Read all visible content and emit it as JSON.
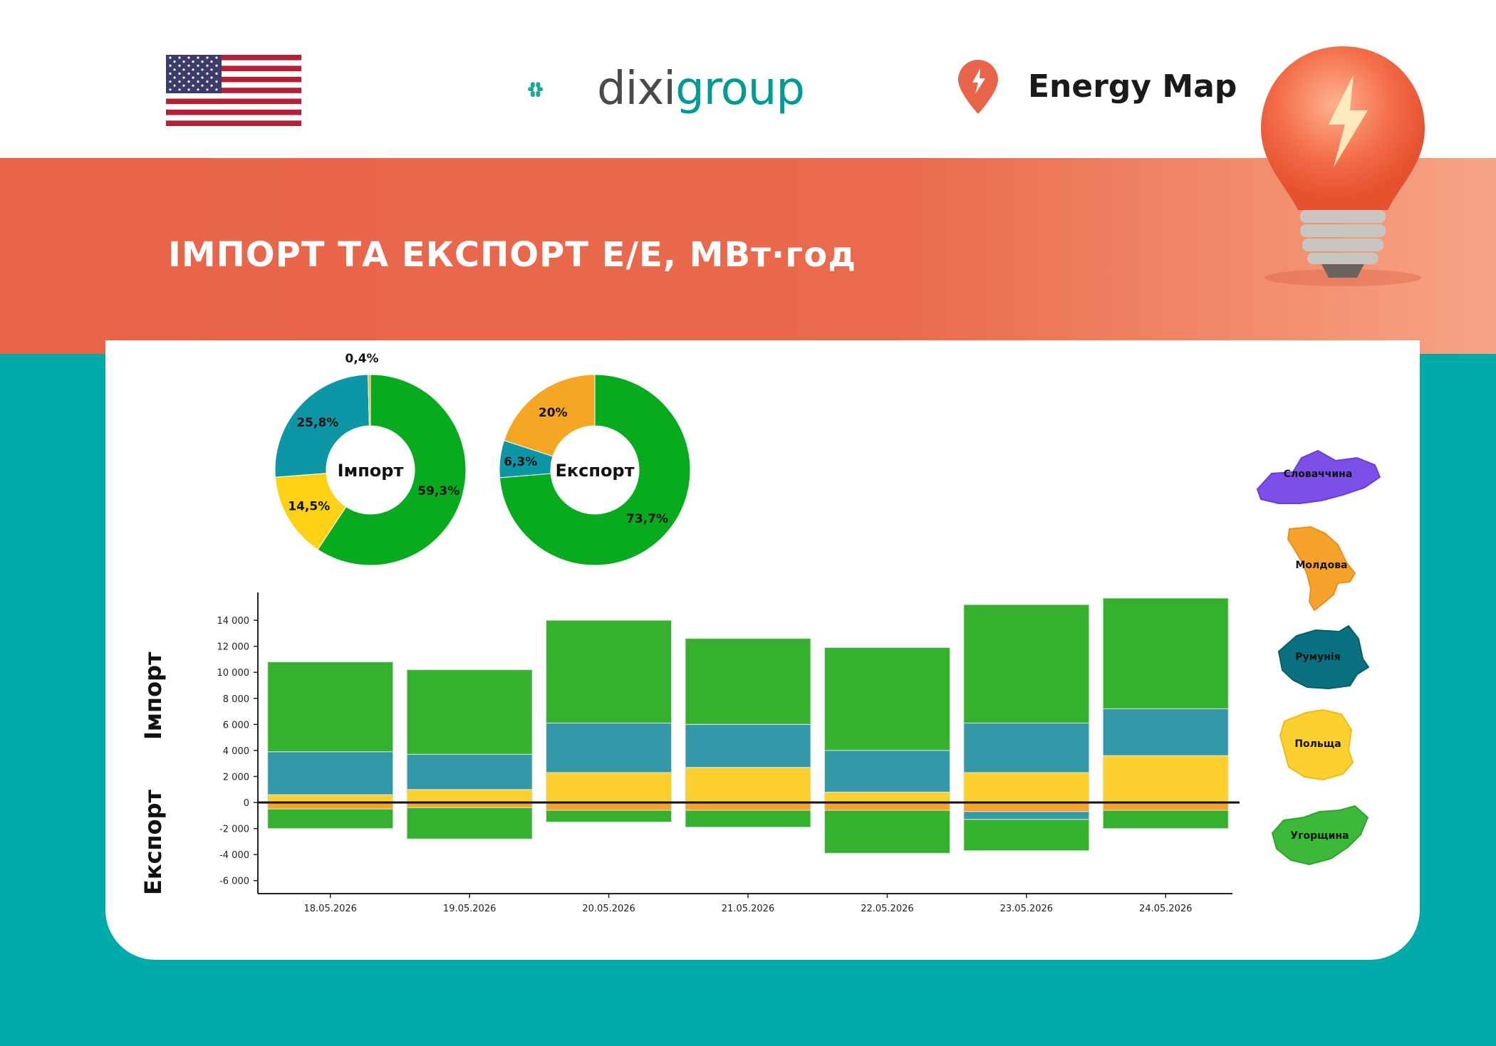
{
  "header": {
    "brand_left": "dixi",
    "brand_right": "group",
    "energy_map": "Energy Map",
    "title": "ІМПОРТ ТА ЕКСПОРТ Е/Е, МВт·год"
  },
  "colors": {
    "banner": "#e8644a",
    "teal": "#00aaa8",
    "green": "#35b02f",
    "blue": "#3498a8",
    "yellow": "#fcd12f",
    "orange": "#f6a22b"
  },
  "legend": {
    "slovakia": "Словаччина",
    "moldova": "Молдова",
    "romania": "Румунія",
    "poland": "Польща",
    "hungary": "Угорщина"
  },
  "axis_side_labels": {
    "import": "Імпорт",
    "export": "Експорт"
  },
  "chart_data": [
    {
      "type": "pie",
      "title": "Імпорт",
      "slices": [
        {
          "name": "Угорщина",
          "value": 59.3,
          "label": "59,3%",
          "color": "#08ab1e"
        },
        {
          "name": "Польща",
          "value": 14.5,
          "label": "14,5%",
          "color": "#fcd116"
        },
        {
          "name": "Румунія",
          "value": 25.8,
          "label": "25,8%",
          "color": "#0d97a6"
        },
        {
          "name": "Молдова",
          "value": 0.4,
          "label": "0,4%",
          "color": "#f5a623"
        }
      ]
    },
    {
      "type": "pie",
      "title": "Експорт",
      "slices": [
        {
          "name": "Угорщина",
          "value": 73.7,
          "label": "73,7%",
          "color": "#08ab1e"
        },
        {
          "name": "Румунія",
          "value": 6.3,
          "label": "6,3%",
          "color": "#0d97a6"
        },
        {
          "name": "Молдова",
          "value": 20,
          "label": "20%",
          "color": "#f5a623"
        }
      ]
    },
    {
      "type": "bar",
      "categories": [
        "18.05.2026",
        "19.05.2026",
        "20.05.2026",
        "21.05.2026",
        "22.05.2026",
        "23.05.2026",
        "24.05.2026"
      ],
      "ylim": [
        -7000,
        15700
      ],
      "yticks": [
        14000,
        12000,
        10000,
        8000,
        6000,
        4000,
        2000,
        0,
        -2000,
        -4000,
        -6000
      ],
      "ytick_labels": [
        "14 000",
        "12 000",
        "10 000",
        "8 000",
        "6 000",
        "4 000",
        "2 000",
        "0",
        "-2 000",
        "-4 000",
        "-6 000"
      ],
      "import_series": [
        {
          "name": "Польща",
          "color": "#fcd12f",
          "values": [
            600,
            1000,
            2300,
            2700,
            800,
            2300,
            3600
          ]
        },
        {
          "name": "Румунія",
          "color": "#3498a8",
          "values": [
            3300,
            2700,
            3800,
            3300,
            3200,
            3800,
            3600
          ]
        },
        {
          "name": "Угорщина",
          "color": "#35b02f",
          "values": [
            6900,
            6500,
            7900,
            6600,
            7900,
            9100,
            8500
          ]
        }
      ],
      "export_series": [
        {
          "name": "Молдова",
          "color": "#f6a22b",
          "values": [
            -500,
            -400,
            -600,
            -600,
            -600,
            -700,
            -600
          ]
        },
        {
          "name": "Румунія",
          "color": "#3498a8",
          "values": [
            0,
            0,
            0,
            0,
            0,
            -600,
            0
          ]
        },
        {
          "name": "Угорщина",
          "color": "#35b02f",
          "values": [
            -1500,
            -2400,
            -900,
            -1300,
            -3300,
            -2400,
            -1400
          ]
        }
      ]
    }
  ]
}
